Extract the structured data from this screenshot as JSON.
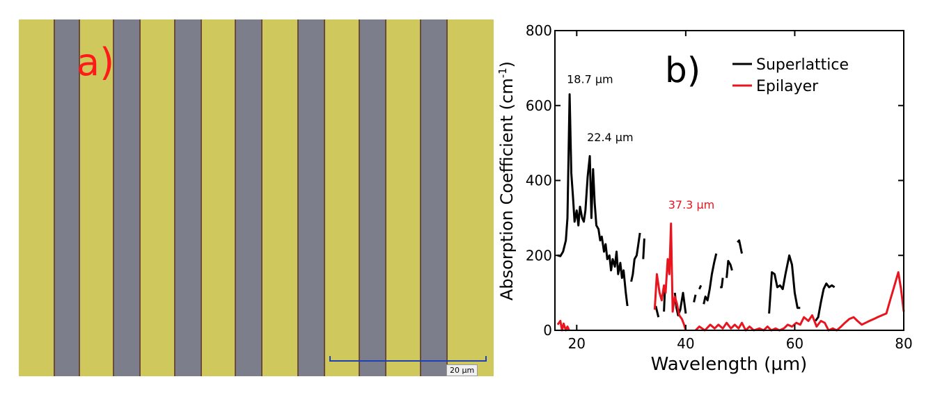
{
  "panel_a": {
    "label": "a)",
    "scalebar_label": "20 µm",
    "colors": {
      "gold": "#cfc85c",
      "grating": "#7c7f8b",
      "scalebar": "#1f3fb5",
      "label": "#ff1a1a"
    }
  },
  "chart_data": {
    "type": "line",
    "panel_label": "b)",
    "xlabel": "Wavelength (µm)",
    "ylabel": "Absorption Coefficient (cm⁻¹)",
    "xlim": [
      16,
      80
    ],
    "ylim": [
      0,
      800
    ],
    "xticks": [
      20,
      40,
      60,
      80
    ],
    "yticks": [
      0,
      200,
      400,
      600,
      800
    ],
    "legend": {
      "placement": "top-right"
    },
    "annotations": [
      {
        "text": "18.7 µm",
        "x": 18.7,
        "y": 660,
        "color": "#000000"
      },
      {
        "text": "22.4 µm",
        "x": 22.4,
        "y": 505,
        "color": "#000000"
      },
      {
        "text": "37.3 µm",
        "x": 37.3,
        "y": 325,
        "color": "#e8141e"
      }
    ],
    "series": [
      {
        "name": "Superlattice",
        "color": "#000000",
        "segments": [
          [
            [
              16.5,
              200
            ],
            [
              17,
              198
            ],
            [
              17.5,
              210
            ],
            [
              18,
              240
            ],
            [
              18.3,
              300
            ],
            [
              18.7,
              630
            ],
            [
              19,
              420
            ],
            [
              19.3,
              360
            ],
            [
              19.6,
              290
            ],
            [
              20,
              320
            ],
            [
              20.3,
              280
            ],
            [
              20.6,
              330
            ],
            [
              21,
              300
            ],
            [
              21.3,
              290
            ],
            [
              21.6,
              320
            ],
            [
              22,
              410
            ],
            [
              22.4,
              465
            ],
            [
              22.7,
              300
            ],
            [
              23,
              430
            ],
            [
              23.3,
              340
            ],
            [
              23.6,
              280
            ],
            [
              24,
              270
            ],
            [
              24.3,
              240
            ],
            [
              24.6,
              250
            ],
            [
              25,
              210
            ],
            [
              25.3,
              230
            ],
            [
              25.6,
              190
            ],
            [
              26,
              200
            ],
            [
              26.3,
              160
            ],
            [
              26.6,
              190
            ],
            [
              27,
              170
            ],
            [
              27.3,
              210
            ],
            [
              27.6,
              150
            ],
            [
              28,
              180
            ],
            [
              28.3,
              140
            ],
            [
              28.6,
              160
            ],
            [
              29,
              100
            ],
            [
              29.3,
              65
            ]
          ],
          [
            [
              30,
              130
            ],
            [
              30.3,
              150
            ],
            [
              30.6,
              190
            ],
            [
              31,
              200
            ],
            [
              31.3,
              230
            ],
            [
              31.6,
              260
            ]
          ],
          [
            [
              32.2,
              190
            ],
            [
              32.4,
              245
            ]
          ],
          [
            [
              34.5,
              65
            ],
            [
              35,
              35
            ]
          ],
          [
            [
              36,
              50
            ],
            [
              36.2,
              115
            ]
          ],
          [
            [
              38,
              100
            ],
            [
              38.3,
              60
            ],
            [
              38.6,
              40
            ],
            [
              39,
              55
            ],
            [
              39.5,
              100
            ],
            [
              40,
              45
            ]
          ],
          [
            [
              41.5,
              75
            ],
            [
              41.8,
              95
            ]
          ],
          [
            [
              42.5,
              110
            ],
            [
              42.8,
              120
            ]
          ],
          [
            [
              43.3,
              70
            ],
            [
              43.6,
              90
            ],
            [
              44,
              80
            ],
            [
              44.4,
              110
            ],
            [
              44.8,
              150
            ],
            [
              45.2,
              180
            ],
            [
              45.6,
              205
            ]
          ],
          [
            [
              46.3,
              115
            ],
            [
              46.6,
              115
            ],
            [
              46.8,
              140
            ]
          ],
          [
            [
              47.5,
              140
            ],
            [
              47.8,
              185
            ],
            [
              48.2,
              175
            ],
            [
              48.5,
              160
            ]
          ],
          [
            [
              49.5,
              235
            ],
            [
              49.8,
              240
            ],
            [
              50.3,
              205
            ]
          ],
          [
            [
              55.3,
              45
            ],
            [
              55.8,
              155
            ],
            [
              56.3,
              150
            ],
            [
              56.8,
              115
            ],
            [
              57.3,
              120
            ],
            [
              57.8,
              110
            ],
            [
              58.3,
              150
            ],
            [
              59,
              200
            ],
            [
              59.5,
              175
            ],
            [
              60,
              100
            ],
            [
              60.5,
              60
            ],
            [
              61,
              60
            ]
          ],
          [
            [
              63.8,
              25
            ],
            [
              64.3,
              35
            ],
            [
              64.8,
              75
            ],
            [
              65.3,
              110
            ],
            [
              65.8,
              125
            ],
            [
              66.3,
              115
            ],
            [
              66.8,
              120
            ],
            [
              67.3,
              115
            ]
          ]
        ]
      },
      {
        "name": "Epilayer",
        "color": "#e8141e",
        "segments": [
          [
            [
              16.5,
              15
            ],
            [
              17,
              25
            ],
            [
              17.3,
              0
            ],
            [
              17.6,
              18
            ],
            [
              18,
              0
            ],
            [
              18.3,
              10
            ],
            [
              18.6,
              0
            ]
          ],
          [
            [
              34.3,
              55
            ],
            [
              34.7,
              150
            ],
            [
              35.2,
              100
            ],
            [
              35.6,
              80
            ],
            [
              36,
              120
            ],
            [
              36.3,
              100
            ],
            [
              36.7,
              190
            ],
            [
              37,
              150
            ],
            [
              37.3,
              285
            ],
            [
              37.6,
              50
            ],
            [
              38,
              90
            ],
            [
              38.4,
              70
            ],
            [
              38.8,
              40
            ],
            [
              39.3,
              30
            ],
            [
              39.7,
              15
            ],
            [
              40,
              0
            ]
          ],
          [
            [
              41.8,
              0
            ],
            [
              42.5,
              10
            ],
            [
              43.5,
              0
            ],
            [
              44.5,
              15
            ],
            [
              45.3,
              5
            ],
            [
              46,
              15
            ],
            [
              46.8,
              5
            ],
            [
              47.5,
              20
            ],
            [
              48.3,
              5
            ],
            [
              49,
              15
            ],
            [
              49.7,
              5
            ],
            [
              50.3,
              20
            ],
            [
              51,
              0
            ],
            [
              51.7,
              10
            ],
            [
              52.5,
              0
            ],
            [
              53.5,
              5
            ],
            [
              54.3,
              0
            ],
            [
              55,
              10
            ],
            [
              55.7,
              0
            ],
            [
              56.5,
              5
            ],
            [
              57.2,
              0
            ],
            [
              58,
              5
            ],
            [
              58.7,
              15
            ],
            [
              59.5,
              10
            ],
            [
              60.3,
              20
            ],
            [
              61,
              15
            ],
            [
              61.7,
              35
            ],
            [
              62.5,
              25
            ],
            [
              63.2,
              40
            ],
            [
              64,
              10
            ],
            [
              64.8,
              25
            ],
            [
              65.5,
              20
            ],
            [
              66.2,
              0
            ],
            [
              67,
              5
            ],
            [
              67.7,
              0
            ],
            [
              68.5,
              10
            ],
            [
              69.2,
              20
            ],
            [
              70,
              30
            ],
            [
              70.8,
              35
            ],
            [
              71.5,
              25
            ],
            [
              72.3,
              15
            ],
            [
              73,
              20
            ],
            [
              73.7,
              25
            ],
            [
              74.5,
              30
            ],
            [
              75.2,
              35
            ],
            [
              76,
              40
            ],
            [
              76.8,
              45
            ],
            [
              77.5,
              80
            ],
            [
              78.3,
              120
            ],
            [
              79,
              155
            ],
            [
              79.5,
              110
            ],
            [
              80,
              50
            ]
          ]
        ]
      }
    ]
  }
}
